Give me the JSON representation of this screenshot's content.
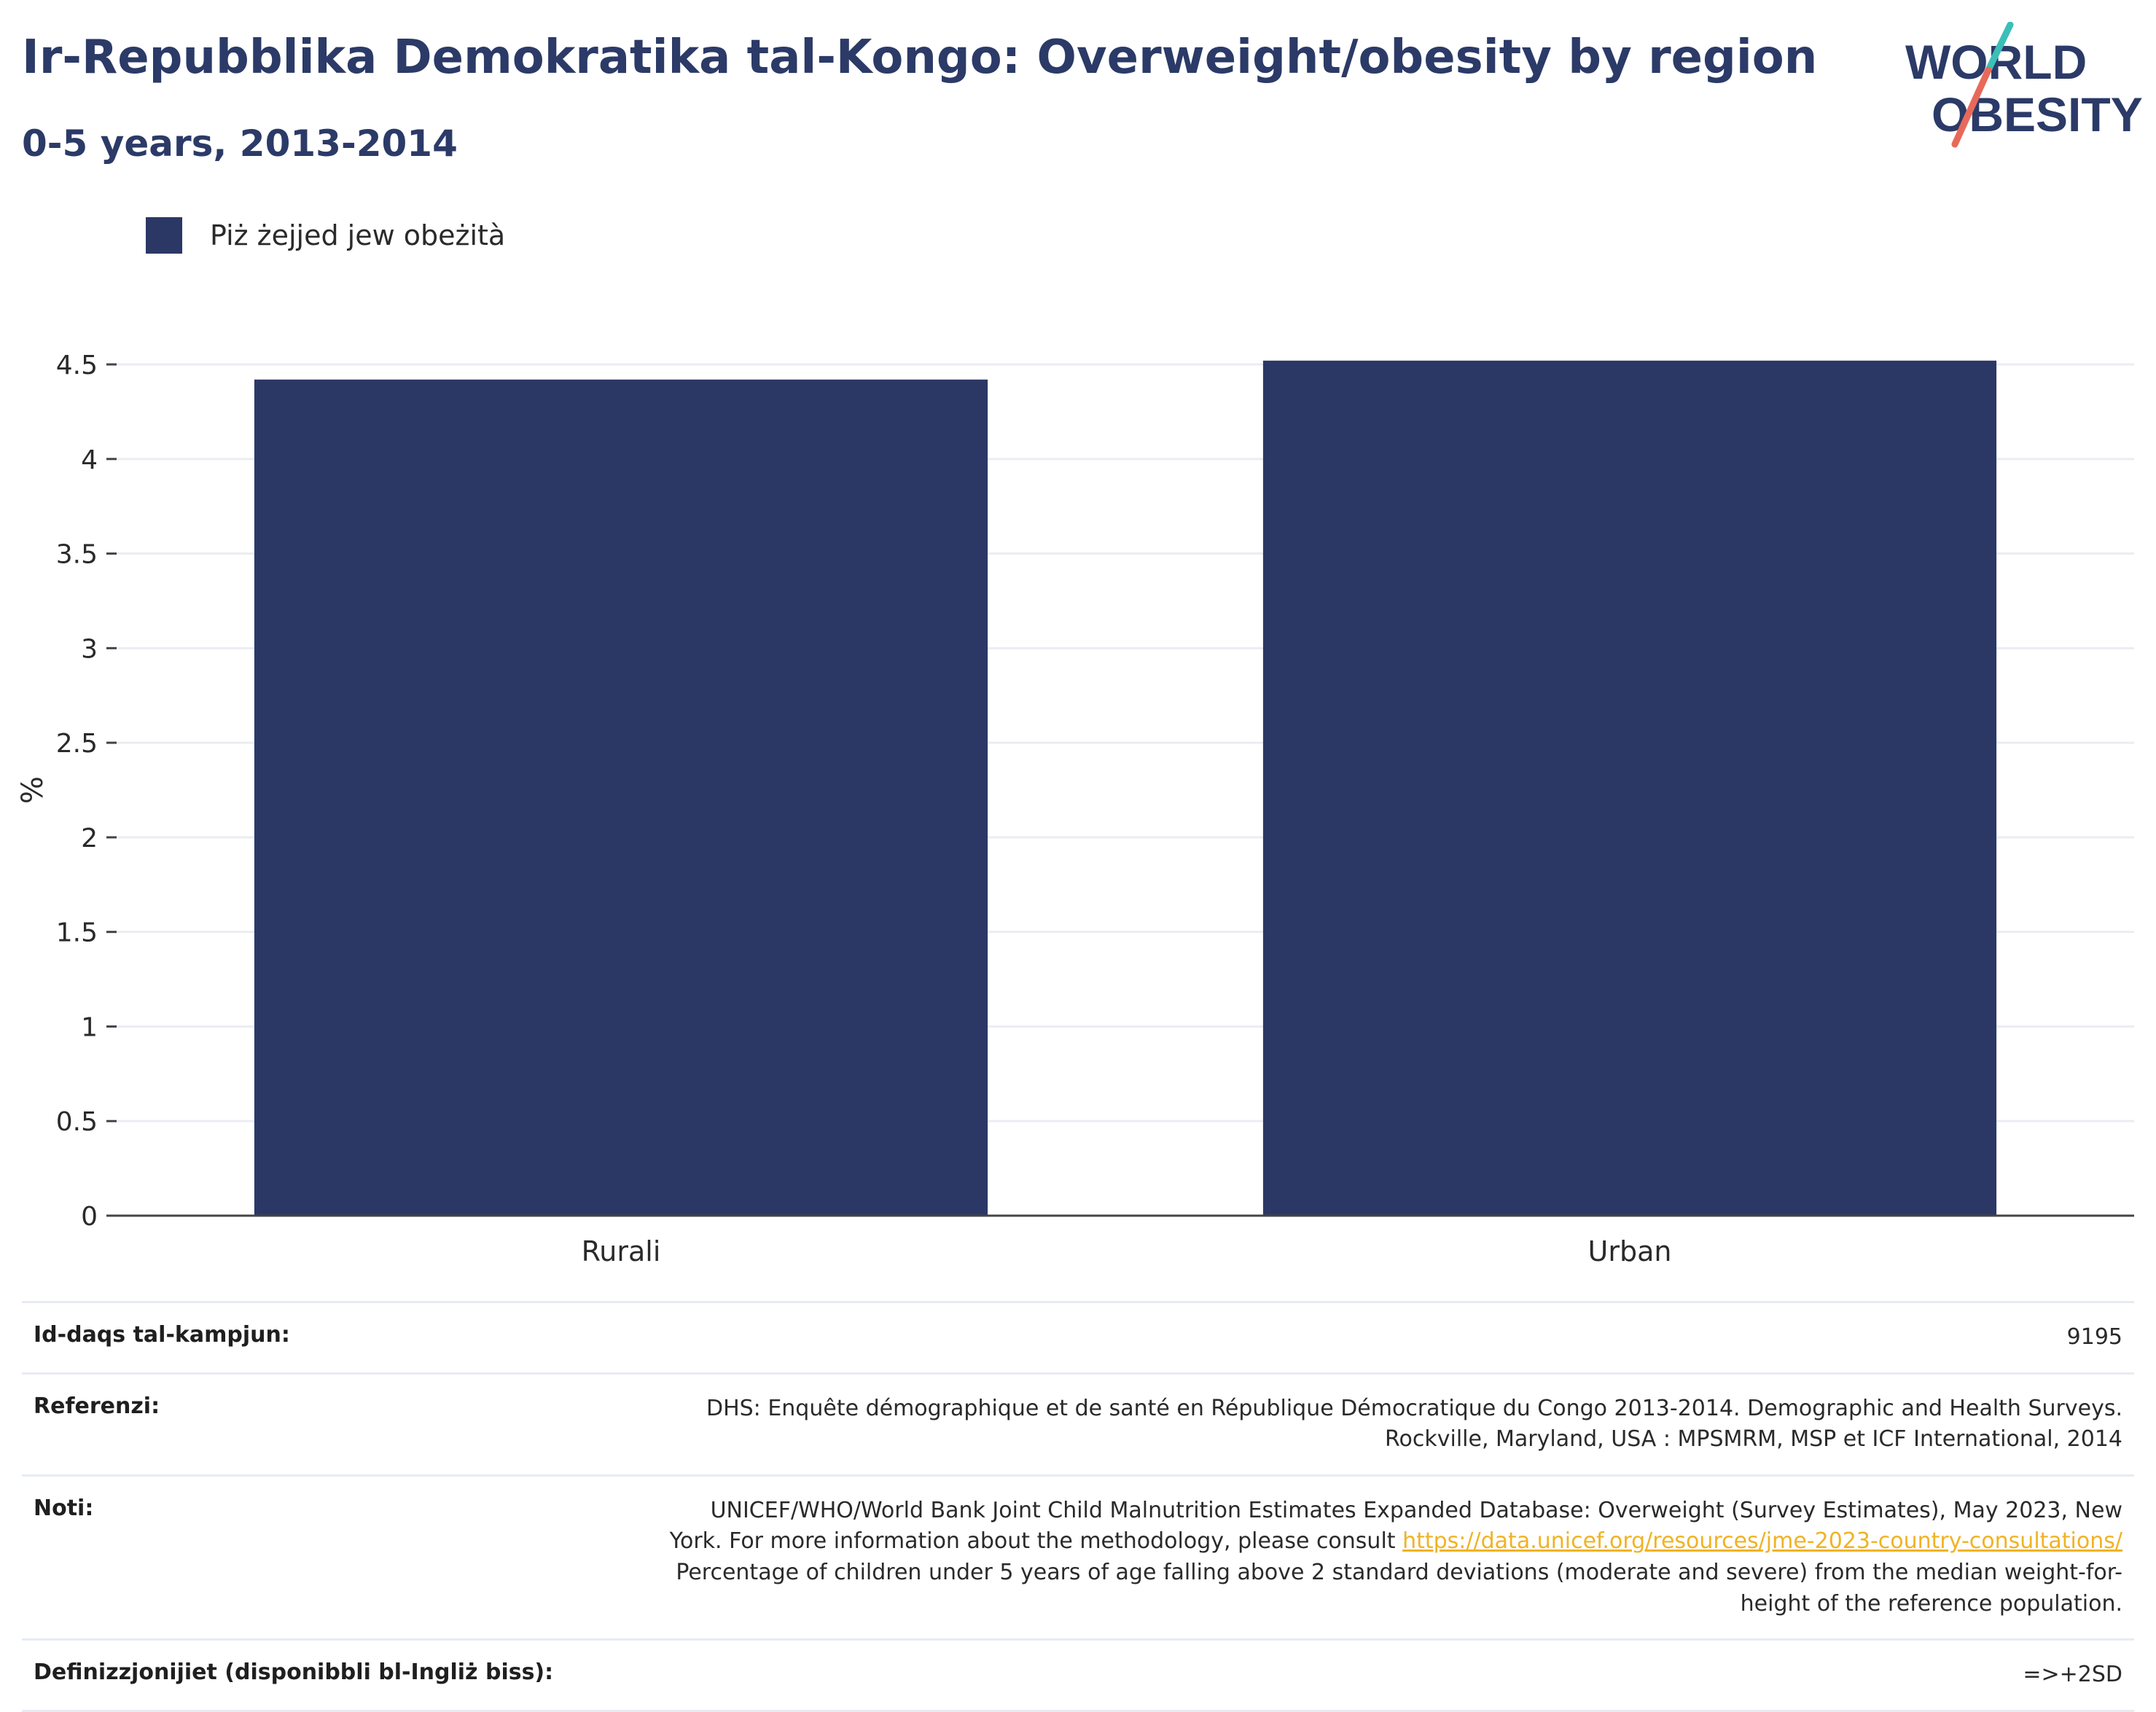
{
  "header": {
    "title": "Ir-Repubblika Demokratika tal-Kongo: Overweight/obesity by region",
    "subtitle": "0-5 years, 2013-2014"
  },
  "logo": {
    "line1": "WORLD",
    "line2": "OBESITY",
    "colors": {
      "text": "#2b3a67",
      "slash_top": "#3bbfb8",
      "slash_bottom": "#e8695a"
    }
  },
  "legend": {
    "label": "Piż żejjed jew obeżità",
    "color": "#2b3866"
  },
  "chart_data": {
    "type": "bar",
    "categories": [
      "Rurali",
      "Urban"
    ],
    "series": [
      {
        "name": "Piż żejjed jew obeżità",
        "values": [
          4.42,
          4.52
        ],
        "color": "#2b3866"
      }
    ],
    "ylabel": "%",
    "xlabel": "",
    "ylim": [
      0,
      4.5
    ],
    "yticks": [
      0,
      0.5,
      1,
      1.5,
      2,
      2.5,
      3,
      3.5,
      4,
      4.5
    ],
    "ytick_labels": [
      "0",
      "0.5",
      "1",
      "1.5",
      "2",
      "2.5",
      "3",
      "3.5",
      "4",
      "4.5"
    ],
    "grid": true,
    "legend_position": "top-left"
  },
  "info": {
    "sample_size": {
      "label": "Id-daqs tal-kampjun:",
      "value": "9195"
    },
    "references": {
      "label": "Referenzi:",
      "line1": "DHS: Enquête démographique et de santé en République Démocratique du Congo 2013-2014. Demographic and Health Surveys.",
      "line2": "Rockville, Maryland, USA : MPSMRM, MSP et ICF International, 2014"
    },
    "notes": {
      "label": "Noti:",
      "line1": "UNICEF/WHO/World Bank Joint Child Malnutrition Estimates Expanded Database: Overweight (Survey Estimates), May 2023, New",
      "line2_pre": "York. For more information about the methodology, please consult",
      "link": "https://data.unicef.org/resources/jme-2023-country-consultations/",
      "line3": "Percentage of children under 5 years of age falling above 2 standard deviations (moderate and severe) from the median weight-for-",
      "line4": "height of the reference population."
    },
    "definitions": {
      "label": "Definizzjonijiet (disponibbli bl-Ingliż biss):",
      "value": "=>+2SD"
    }
  }
}
